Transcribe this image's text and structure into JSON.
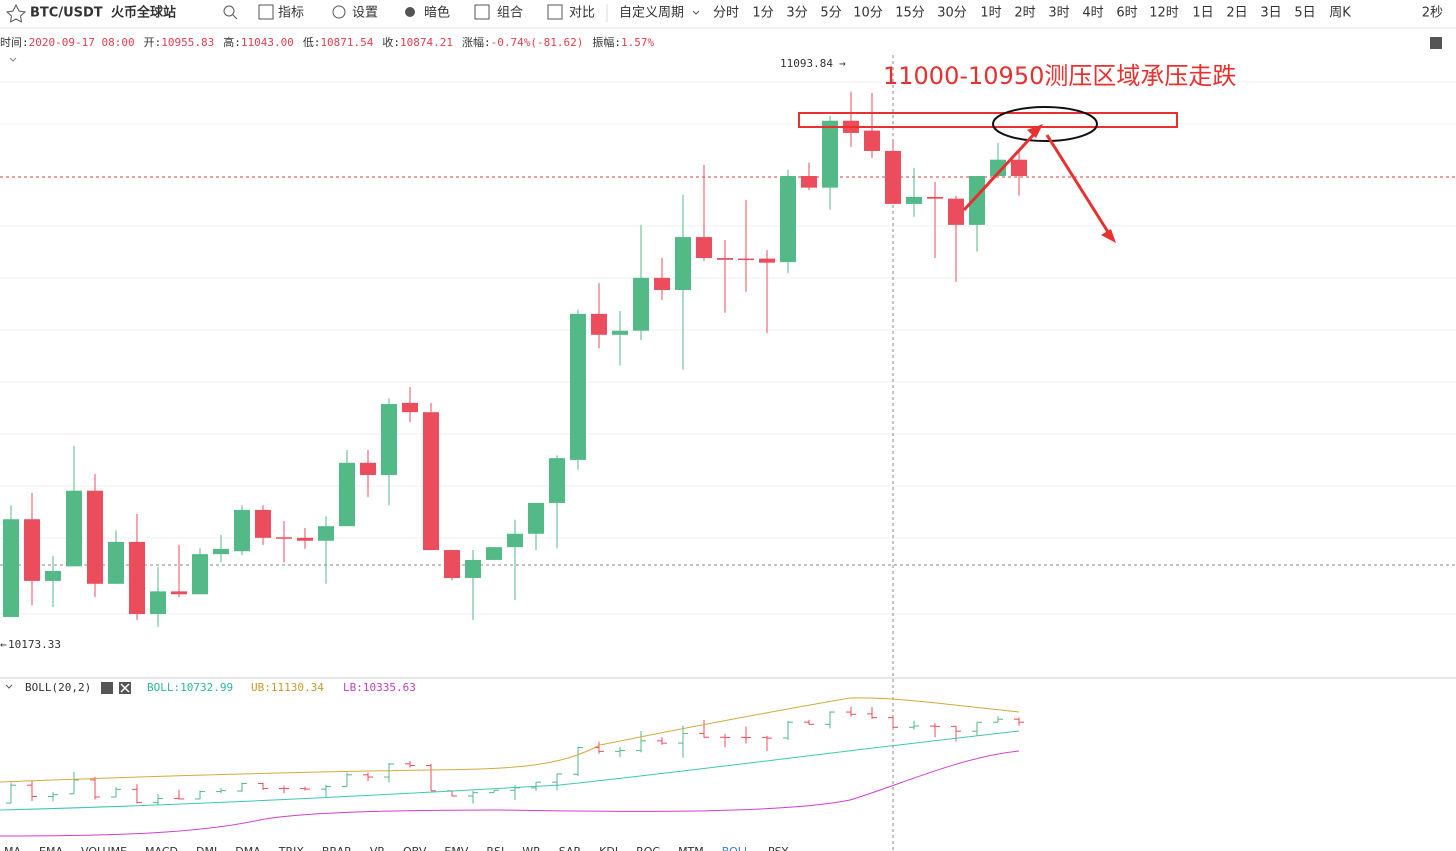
{
  "toolbar": {
    "symbol": "BTC/USDT",
    "exchange": "火币全球站",
    "tools": [
      "指标",
      "设置",
      "暗色",
      "组合",
      "对比"
    ],
    "custom_period": "自定义周期",
    "periods": [
      "分时",
      "1分",
      "3分",
      "5分",
      "10分",
      "15分",
      "30分",
      "1时",
      "2时",
      "3时",
      "4时",
      "6时",
      "12时",
      "1日",
      "2日",
      "3日",
      "5日",
      "周K"
    ],
    "active_period": "4时",
    "refresh": "2秒"
  },
  "info": [
    {
      "label": "时间:",
      "value": "2020-09-17 08:00"
    },
    {
      "label": "开:",
      "value": "10955.83"
    },
    {
      "label": "高:",
      "value": "11043.00"
    },
    {
      "label": "低:",
      "value": "10871.54"
    },
    {
      "label": "收:",
      "value": "10874.21"
    },
    {
      "label": "涨幅:",
      "value": "-0.74%(-81.62)"
    },
    {
      "label": "振幅:",
      "value": "1.57%"
    }
  ],
  "chart_data": {
    "type": "candlestick",
    "annotation": "11000-10950测压区域承压走跌",
    "high_label": "11093.84",
    "low_label": "10173.33",
    "ylim": [
      10117,
      11157
    ],
    "up_color": "#53b987",
    "down_color": "#eb4d5c",
    "open": [
      10191,
      10359,
      10253,
      10278,
      10408,
      10248,
      10320,
      10196,
      10235,
      10230,
      10299,
      10304,
      10375,
      10328,
      10327,
      10322,
      10347,
      10456,
      10435,
      10559,
      10543,
      10306,
      10258,
      10289,
      10311,
      10334,
      10387,
      10461,
      10712,
      10676,
      10683,
      10774,
      10753,
      10844,
      10808,
      10807,
      10807,
      10801,
      10949,
      10929,
      11044,
      11027,
      10992,
      10901,
      10913,
      10910,
      10865,
      10949,
      10977
    ],
    "high": [
      10383,
      10404,
      10296,
      10485,
      10437,
      10340,
      10368,
      10277,
      10315,
      10309,
      10332,
      10383,
      10383,
      10356,
      10344,
      10364,
      10478,
      10478,
      10567,
      10586,
      10559,
      10306,
      10306,
      10311,
      10358,
      10387,
      10469,
      10719,
      10765,
      10717,
      10865,
      10808,
      10917,
      10968,
      10839,
      10908,
      10822,
      10960,
      10972,
      11052,
      11094,
      11092,
      11011,
      10963,
      10939,
      10915,
      10949,
      11006,
      10994
    ],
    "low": [
      10191,
      10211,
      10208,
      10278,
      10225,
      10248,
      10186,
      10174,
      10225,
      10230,
      10285,
      10297,
      10315,
      10285,
      10308,
      10248,
      10347,
      10397,
      10383,
      10526,
      10306,
      10254,
      10186,
      10289,
      10220,
      10306,
      10309,
      10444,
      10653,
      10623,
      10667,
      10736,
      10616,
      10803,
      10714,
      10750,
      10679,
      10782,
      10925,
      10891,
      10999,
      10980,
      10901,
      10879,
      10808,
      10767,
      10819,
      10949,
      10915
    ],
    "close": [
      10359,
      10253,
      10270,
      10408,
      10248,
      10320,
      10196,
      10235,
      10230,
      10299,
      10308,
      10375,
      10327,
      10327,
      10322,
      10347,
      10456,
      10435,
      10557,
      10543,
      10306,
      10258,
      10289,
      10311,
      10334,
      10387,
      10464,
      10712,
      10676,
      10683,
      10774,
      10753,
      10844,
      10808,
      10805,
      10805,
      10800,
      10949,
      10929,
      11044,
      11023,
      10992,
      10901,
      10913,
      10910,
      10865,
      10949,
      10977,
      10949
    ]
  },
  "indicator": {
    "name": "BOLL(20,2)",
    "boll": "BOLL:10732.99",
    "ub": "UB:11130.34",
    "lb": "LB:10335.63"
  },
  "indicator_tabs": [
    "MA",
    "EMA",
    "VOLUME",
    "MACD",
    "DMI",
    "DMA",
    "TRIX",
    "BRAR",
    "VR",
    "OBV",
    "EMV",
    "RSI",
    "WR",
    "SAR",
    "KDJ",
    "ROC",
    "MTM",
    "BOLL",
    "PSY"
  ],
  "active_tab": "BOLL"
}
